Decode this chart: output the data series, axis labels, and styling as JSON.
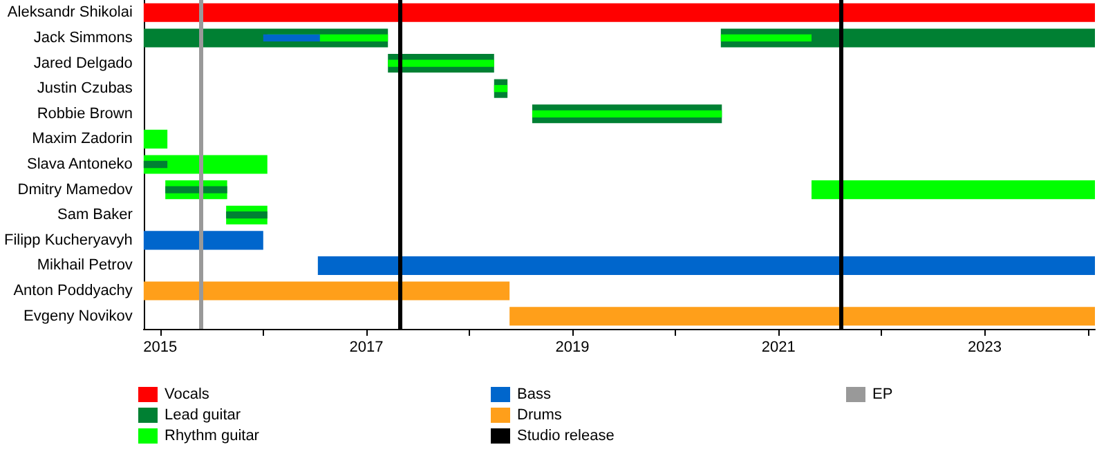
{
  "chart_data": {
    "type": "bar",
    "orientation": "horizontal",
    "categories": [
      "Aleksandr Shikolai",
      "Jack Simmons",
      "Jared Delgado",
      "Justin Czubas",
      "Robbie Brown",
      "Maxim Zadorin",
      "Slava Antoneko",
      "Dmitry Mamedov",
      "Sam Baker",
      "Filipp Kucheryavyh",
      "Mikhail Petrov",
      "Anton Poddyachy",
      "Evgeny Novikov"
    ],
    "series": [
      {
        "name": "Vocals",
        "color": "#ff0000",
        "base": [
          2014.84,
          null,
          null,
          null,
          null,
          null,
          null,
          null,
          null,
          null,
          null,
          null,
          null
        ],
        "values": [
          9.23,
          null,
          null,
          null,
          null,
          null,
          null,
          null,
          null,
          null,
          null,
          null,
          null
        ]
      },
      {
        "name": "Lead guitar",
        "color": "#008033",
        "base": [
          null,
          2014.84,
          2017.21,
          2018.24,
          2018.61,
          null,
          null,
          null,
          null,
          null,
          null,
          null,
          null
        ],
        "values": [
          null,
          2.37,
          1.03,
          0.13,
          1.84,
          null,
          null,
          null,
          null,
          null,
          null,
          null,
          null
        ]
      },
      {
        "name": "Rhythm guitar",
        "color": "#00ff00",
        "base": [
          null,
          2016.04,
          null,
          null,
          null,
          2014.84,
          2014.84,
          2015.05,
          2015.64,
          null,
          null,
          null,
          null
        ],
        "values": [
          null,
          1.17,
          null,
          null,
          null,
          0.23,
          1.2,
          0.6,
          0.4,
          null,
          null,
          null,
          null
        ]
      },
      {
        "name": "Bass",
        "color": "#0066cc",
        "base": [
          null,
          2016.0,
          null,
          null,
          null,
          null,
          null,
          null,
          null,
          2014.84,
          2016.53,
          null,
          null
        ],
        "values": [
          null,
          0.55,
          null,
          null,
          null,
          null,
          null,
          null,
          null,
          1.16,
          7.54,
          null,
          null
        ]
      },
      {
        "name": "Drums",
        "color": "#ff9f1a",
        "base": [
          null,
          null,
          null,
          null,
          null,
          null,
          null,
          null,
          null,
          null,
          null,
          2014.84,
          2018.39
        ],
        "values": [
          null,
          null,
          null,
          null,
          null,
          null,
          null,
          null,
          null,
          null,
          null,
          3.55,
          5.68
        ]
      },
      {
        "color": "#008033",
        "base": [
          null,
          2020.44,
          null,
          null,
          null,
          null,
          2014.84,
          2015.05,
          2015.64,
          null,
          null,
          null,
          null
        ],
        "values": [
          null,
          3.63,
          null,
          null,
          null,
          null,
          0.23,
          0.6,
          0.4,
          null,
          null,
          null,
          null
        ]
      },
      {
        "color": "#00ff00",
        "base": [
          null,
          2020.44,
          2017.21,
          2018.24,
          2018.61,
          null,
          null,
          2021.32,
          null,
          null,
          null,
          null,
          null
        ],
        "values": [
          null,
          0.88,
          1.03,
          0.13,
          1.84,
          null,
          null,
          2.75,
          null,
          null,
          null,
          null,
          null
        ]
      }
    ],
    "xlim": [
      2014.84,
      2024.07
    ],
    "xticks": [
      2015,
      {
        "value": 2016,
        "label": null
      },
      2017,
      {
        "value": 2018,
        "label": null
      },
      2019,
      {
        "value": 2020,
        "label": null
      },
      2021,
      {
        "value": 2022,
        "label": null
      },
      2023,
      {
        "value": 2024,
        "label": null
      }
    ],
    "ref_lines": [
      {
        "axis": "x",
        "value": 2017.33,
        "label": "Studio release",
        "color": "#000000"
      },
      {
        "axis": "x",
        "value": 2021.61,
        "color": "#000000"
      },
      {
        "axis": "x",
        "value": 2015.39,
        "label": "EP",
        "color": "#999999"
      }
    ],
    "grid": false,
    "legend": "bottom"
  }
}
